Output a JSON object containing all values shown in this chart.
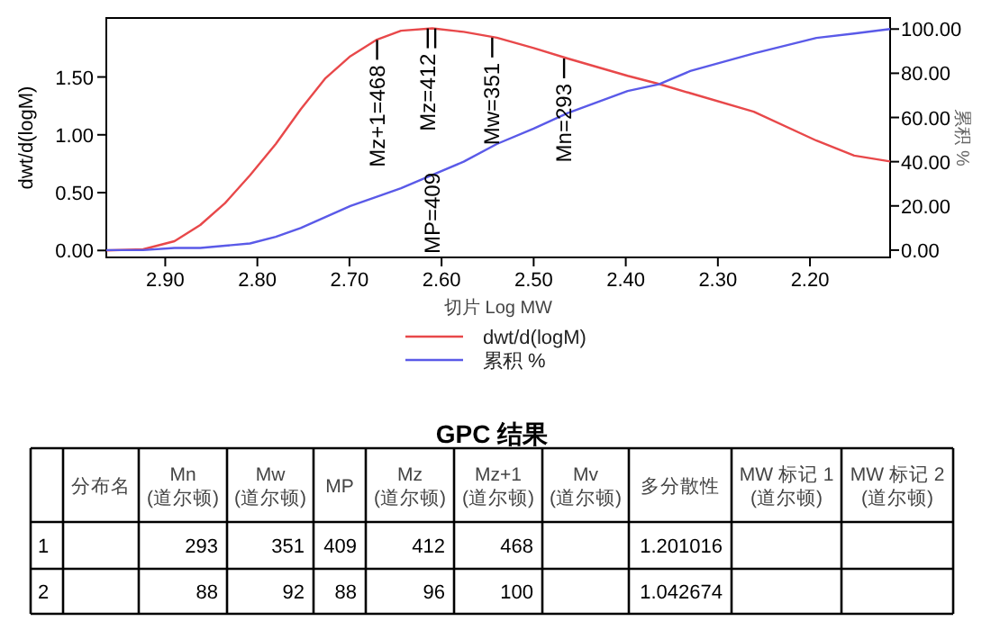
{
  "chart_data": [
    {
      "type": "line",
      "xlabel": "切片 Log MW",
      "ylabel": "dwt/d(logM)",
      "y2label": "累积 %",
      "x": [
        2.964,
        2.924,
        2.89,
        2.862,
        2.835,
        2.808,
        2.78,
        2.753,
        2.726,
        2.699,
        2.671,
        2.644,
        2.61,
        2.576,
        2.54,
        2.5,
        2.463,
        2.398,
        2.364,
        2.33,
        2.261,
        2.193,
        2.152,
        2.113
      ],
      "series": [
        {
          "name": "dwt/d(logM)",
          "color": "#e8484a",
          "values": [
            0.0,
            0.01,
            0.08,
            0.22,
            0.41,
            0.65,
            0.92,
            1.22,
            1.49,
            1.68,
            1.82,
            1.9,
            1.92,
            1.89,
            1.84,
            1.75,
            1.66,
            1.51,
            1.44,
            1.36,
            1.2,
            0.95,
            0.82,
            0.77
          ]
        },
        {
          "name": "累积 %",
          "color": "#5a5ae8",
          "axis": "y2",
          "values": [
            0,
            0,
            1,
            1,
            2,
            3,
            6,
            10,
            15,
            20,
            24,
            28,
            34,
            40,
            48,
            55,
            62,
            72,
            75,
            81,
            89,
            96,
            98,
            100
          ]
        }
      ],
      "xlim": [
        2.964,
        2.113
      ],
      "xticks": [
        {
          "value": 2.9,
          "label": "2.90"
        },
        {
          "value": 2.8,
          "label": "2.80"
        },
        {
          "value": 2.7,
          "label": "2.70"
        },
        {
          "value": 2.6,
          "label": "2.60"
        },
        {
          "value": 2.5,
          "label": "2.50"
        },
        {
          "value": 2.4,
          "label": "2.40"
        },
        {
          "value": 2.3,
          "label": "2.30"
        },
        {
          "value": 2.2,
          "label": "2.20"
        }
      ],
      "ylim": [
        -0.06,
        2.01
      ],
      "yticks": [
        {
          "value": 0,
          "label": "0.00"
        },
        {
          "value": 0.5,
          "label": "0.50"
        },
        {
          "value": 1,
          "label": "1.00"
        },
        {
          "value": 1.5,
          "label": "1.50"
        }
      ],
      "y2lim": [
        -3.3,
        105
      ],
      "y2ticks": [
        {
          "value": 0,
          "label": "0.00"
        },
        {
          "value": 20,
          "label": "20.00"
        },
        {
          "value": 40,
          "label": "40.00"
        },
        {
          "value": 60,
          "label": "60.00"
        },
        {
          "value": 80,
          "label": "80.00"
        },
        {
          "value": 100,
          "label": "100.00"
        }
      ],
      "legend": "bottom",
      "annotations": [
        {
          "text": "Mz+1=468",
          "x": 2.67,
          "y": 1.82
        },
        {
          "text": "Mz=412",
          "x": 2.615,
          "y": 1.92
        },
        "MP=409",
        {
          "text": "Mw=351",
          "x": 2.545,
          "y": 1.84
        },
        {
          "text": "Mn=293",
          "x": 2.467,
          "y": 1.66
        }
      ]
    },
    {
      "type": "other",
      "title": "GPC 结果",
      "categories": [
        null,
        "分布名",
        "Mn\n(道尔顿)",
        "Mw\n(道尔顿)",
        "MP",
        "Mz\n(道尔顿)",
        "Mz+1\n(道尔顿)",
        "Mv\n(道尔顿)",
        "多分散性",
        "MW 标记 1\n(道尔顿)",
        "MW 标记 2\n(道尔顿)"
      ],
      "y_categories": [
        "1",
        "2"
      ],
      "cell_labels": [
        [
          null,
          "293",
          "351",
          "409",
          "412",
          "468",
          null,
          "1.201016",
          null,
          null
        ],
        [
          null,
          "88",
          "92",
          "88",
          "96",
          "100",
          null,
          "1.042674",
          null,
          null
        ]
      ]
    }
  ]
}
